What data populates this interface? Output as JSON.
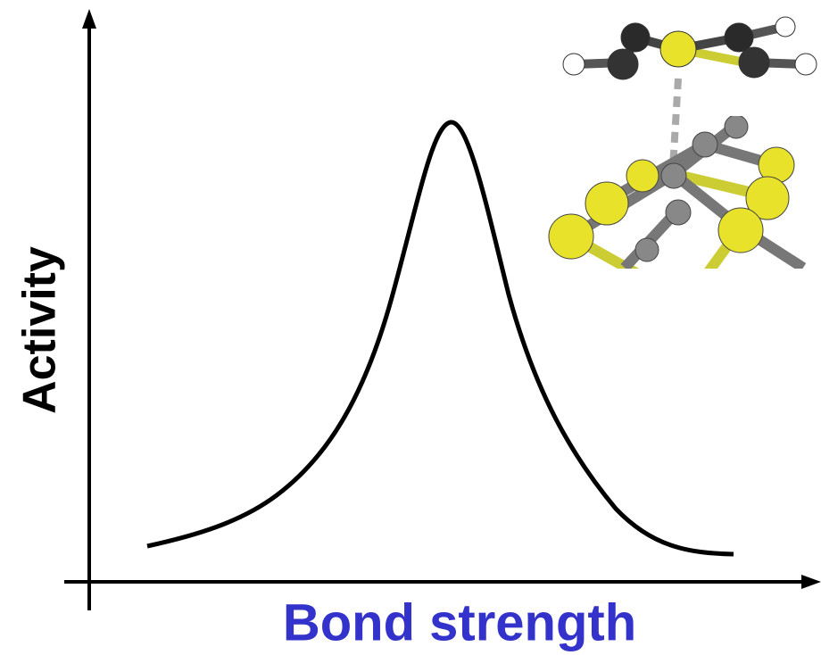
{
  "axes": {
    "y_label": "Activity",
    "x_label": "Bond strength"
  }
}
